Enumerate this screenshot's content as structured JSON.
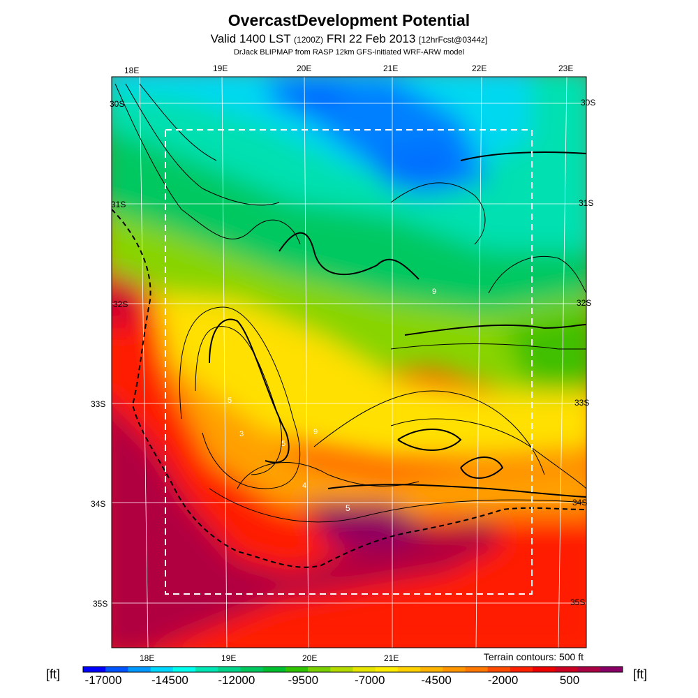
{
  "title": "OvercastDevelopment Potential",
  "subtitle_main": "Valid 1400 LST",
  "subtitle_zulu": "(1200Z)",
  "subtitle_date": "FRI 22 Feb 2013",
  "subtitle_fcst": "[12hrFcst@0344z]",
  "model_line": "DrJack BLIPMAP from RASP 12km GFS-initiated WRF-ARW model",
  "terrain_note": "Terrain contours: 500 ft",
  "units_left": "[ft]",
  "units_right": "[ft]",
  "lon_labels": [
    "18E",
    "19E",
    "20E",
    "21E",
    "22E",
    "23E"
  ],
  "lat_labels": [
    "30S",
    "31S",
    "32S",
    "33S",
    "34S",
    "35S"
  ],
  "contour_labels": [
    "9",
    "5",
    "4",
    "3",
    "5",
    "9",
    "5"
  ],
  "colorbar": {
    "ticks": [
      "-17000",
      "-14500",
      "-12000",
      "-9500",
      "-7000",
      "-4500",
      "-2000",
      "500"
    ],
    "colors": [
      "#0000ff",
      "#0055ff",
      "#0099ff",
      "#00d7ff",
      "#00ffee",
      "#00e6b4",
      "#00d48a",
      "#00c85f",
      "#00c030",
      "#30c400",
      "#7ad000",
      "#b4dc00",
      "#e6e600",
      "#ffee00",
      "#ffd200",
      "#ffb400",
      "#ff9600",
      "#ff7800",
      "#ff4b00",
      "#ff2000",
      "#ee0000",
      "#cc0022",
      "#aa0044",
      "#880066"
    ]
  }
}
